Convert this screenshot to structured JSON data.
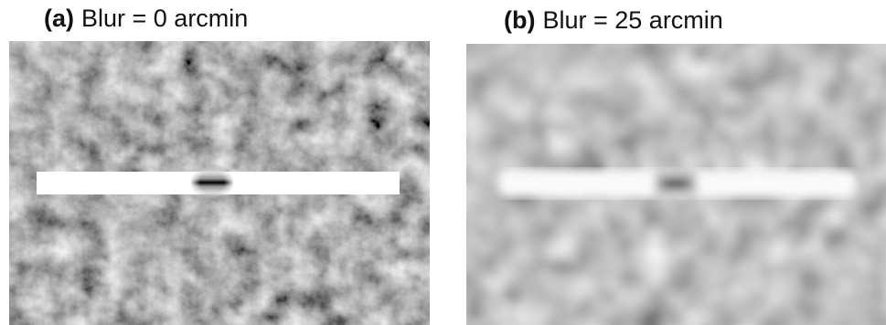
{
  "panels": [
    {
      "label": "(a)",
      "caption": "Blur = 0 arcmin"
    },
    {
      "label": "(b)",
      "caption": "Blur = 25 arcmin"
    }
  ]
}
